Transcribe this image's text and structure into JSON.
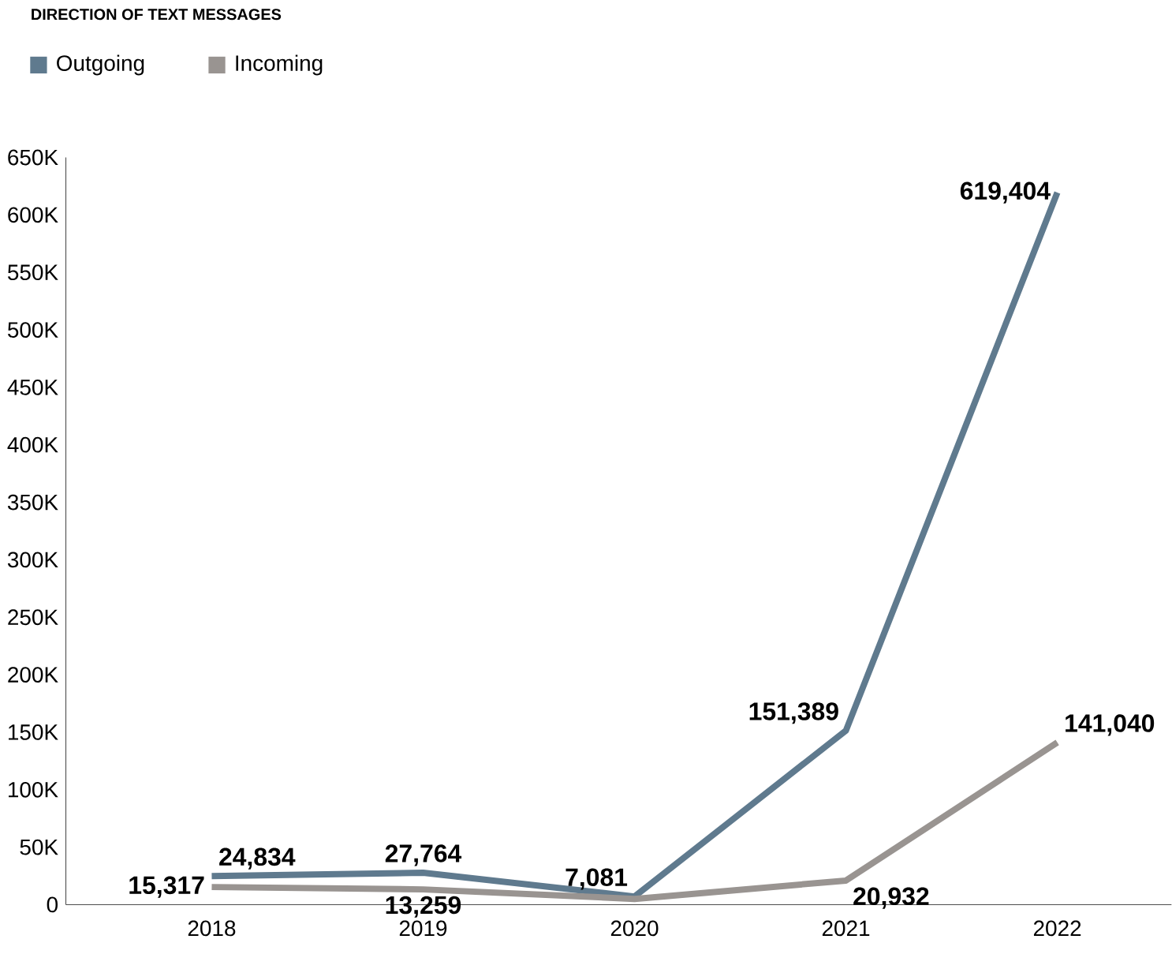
{
  "chart_data": {
    "type": "line",
    "title": "DIRECTION OF TEXT MESSAGES",
    "categories": [
      "2018",
      "2019",
      "2020",
      "2021",
      "2022"
    ],
    "series": [
      {
        "name": "Outgoing",
        "color": "#5f7a8e",
        "values": [
          24834,
          27764,
          7081,
          151389,
          619404
        ],
        "value_labels": [
          "24,834",
          "27,764",
          "7,081",
          "151,389",
          "619,404"
        ]
      },
      {
        "name": "Incoming",
        "color": "#999491",
        "values": [
          15317,
          13259,
          5000,
          20932,
          141040
        ],
        "value_labels": [
          "15,317",
          "13,259",
          null,
          "20,932",
          "141,040"
        ]
      }
    ],
    "ylim": [
      0,
      650000
    ],
    "yticks": [
      0,
      {
        "value": 50000,
        "label": "50K"
      },
      {
        "value": 100000,
        "label": "100K"
      },
      {
        "value": 150000,
        "label": "150K"
      },
      {
        "value": 200000,
        "label": "200K"
      },
      {
        "value": 250000,
        "label": "250K"
      },
      {
        "value": 300000,
        "label": "300K"
      },
      {
        "value": 350000,
        "label": "350K"
      },
      {
        "value": 400000,
        "label": "400K"
      },
      {
        "value": 450000,
        "label": "450K"
      },
      {
        "value": 500000,
        "label": "500K"
      },
      {
        "value": 550000,
        "label": "550K"
      },
      {
        "value": 600000,
        "label": "600K"
      },
      {
        "value": 650000,
        "label": "650K"
      }
    ],
    "legend": "top left",
    "grid": false,
    "marker": "none",
    "line_style": "solid"
  }
}
